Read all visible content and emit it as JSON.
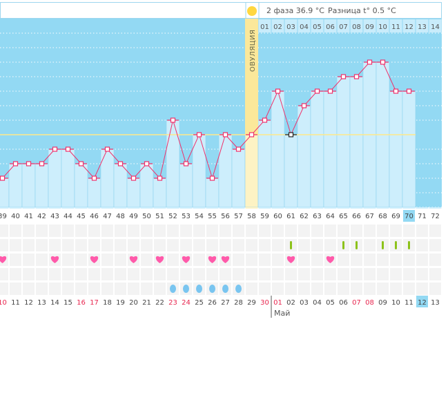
{
  "header": {
    "phase_label": "2 фаза 36.9 °C",
    "diff_label": "Разница t° 0.5 °C",
    "sun_icon": "sun-icon"
  },
  "ovulation_label": "ОВУЛЯЦИЯ",
  "month_label": "Май",
  "colors": {
    "sky": "#93d9f3",
    "bar": "#cdeefc",
    "line": "#f0306a",
    "ovulation": "#fbe89a",
    "coverline": "#ffe98a",
    "heart": "#ff5aaa",
    "drop": "#79c5f0",
    "green": "#8cc21a",
    "weekend": "#e8264f",
    "highlight": "#93d9f3"
  },
  "chart_data": {
    "type": "line",
    "title": "",
    "xlabel": "Cycle day",
    "ylabel": "Temperature °C",
    "ylim": [
      36.0,
      37.3
    ],
    "grid_step": 0.1,
    "coverline": 36.6,
    "ovulation_day": 58,
    "highlight_day": 70,
    "days": [
      39,
      40,
      41,
      42,
      43,
      44,
      45,
      46,
      47,
      48,
      49,
      50,
      51,
      52,
      53,
      54,
      55,
      56,
      57,
      58,
      59,
      60,
      61,
      62,
      63,
      64,
      65,
      66,
      67,
      68,
      69,
      70,
      71,
      72
    ],
    "temperatures": [
      36.3,
      36.4,
      36.4,
      36.4,
      36.5,
      36.5,
      36.4,
      36.3,
      36.5,
      36.4,
      36.3,
      36.4,
      36.3,
      36.7,
      36.4,
      36.6,
      36.3,
      36.6,
      36.5,
      36.6,
      36.7,
      36.9,
      36.6,
      36.8,
      36.9,
      36.9,
      37.0,
      37.0,
      37.1,
      37.1,
      36.9,
      36.9,
      null,
      null
    ],
    "special_marker_days": [
      61
    ],
    "post_ovulation_labels": [
      "01",
      "02",
      "03",
      "04",
      "05",
      "06",
      "07",
      "08",
      "09",
      "10",
      "11",
      "12",
      "13",
      "14"
    ],
    "dates": [
      "10",
      "11",
      "12",
      "13",
      "14",
      "15",
      "16",
      "17",
      "18",
      "19",
      "20",
      "21",
      "22",
      "23",
      "24",
      "25",
      "26",
      "27",
      "28",
      "29",
      "30",
      "01",
      "02",
      "03",
      "04",
      "05",
      "06",
      "07",
      "08",
      "09",
      "10",
      "11",
      "12",
      "13"
    ],
    "red_dates_index": [
      0,
      6,
      7,
      13,
      14,
      20,
      21,
      27,
      28
    ],
    "highlight_date_index": 32,
    "month_start_index": 21,
    "green_mark_days": [
      61,
      65,
      66,
      68,
      69,
      70
    ],
    "heart_days": [
      39,
      43,
      46,
      49,
      51,
      53,
      55,
      56,
      61,
      64
    ],
    "drop_days": [
      52,
      53,
      54,
      55,
      56,
      57
    ]
  }
}
